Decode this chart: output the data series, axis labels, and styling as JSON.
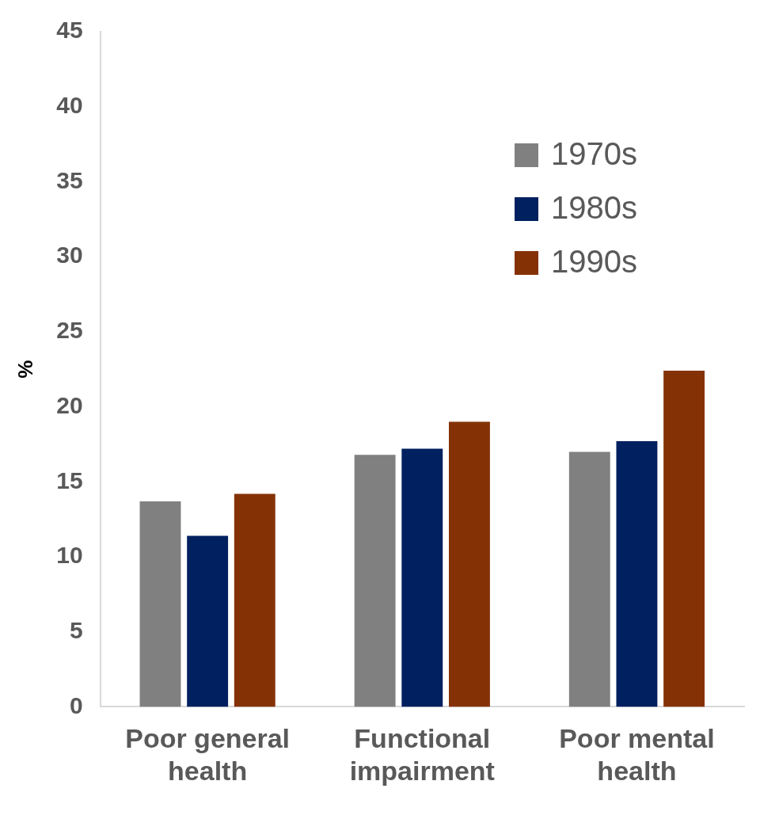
{
  "chart_data": {
    "type": "bar",
    "ylabel": "%",
    "categories": [
      "Poor general health",
      "Functional impairment",
      "Poor mental health"
    ],
    "series": [
      {
        "name": "1970s",
        "color": "#808080",
        "values": [
          13.7,
          16.8,
          17.0
        ]
      },
      {
        "name": "1980s",
        "color": "#002060",
        "values": [
          11.4,
          17.2,
          17.7
        ]
      },
      {
        "name": "1990s",
        "color": "#843205",
        "values": [
          14.2,
          19.0,
          22.4
        ]
      }
    ],
    "ylim": [
      0,
      45
    ],
    "yticks": [
      0,
      5,
      10,
      15,
      20,
      25,
      30,
      35,
      40,
      45
    ],
    "grid": false,
    "legend": "top right"
  }
}
